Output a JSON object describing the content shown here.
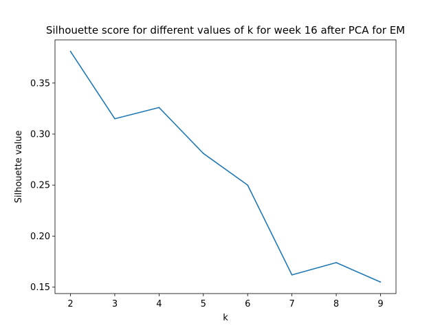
{
  "chart_data": {
    "type": "line",
    "title": "Silhouette score for different values of k for week 16 after PCA for EM",
    "xlabel": "k",
    "ylabel": "Silhouette value",
    "x": [
      2,
      3,
      4,
      5,
      6,
      7,
      8,
      9
    ],
    "series": [
      {
        "values": [
          0.381,
          0.315,
          0.326,
          0.281,
          0.25,
          0.162,
          0.174,
          0.155
        ],
        "color": "#1f77b4"
      }
    ],
    "xticks": [
      "2",
      "3",
      "4",
      "5",
      "6",
      "7",
      "8",
      "9"
    ],
    "yticks": [
      "0.15",
      "0.20",
      "0.25",
      "0.30",
      "0.35"
    ],
    "xlim": [
      1.65,
      9.35
    ],
    "ylim": [
      0.1437,
      0.3923
    ],
    "grid": false,
    "legend": "none"
  }
}
